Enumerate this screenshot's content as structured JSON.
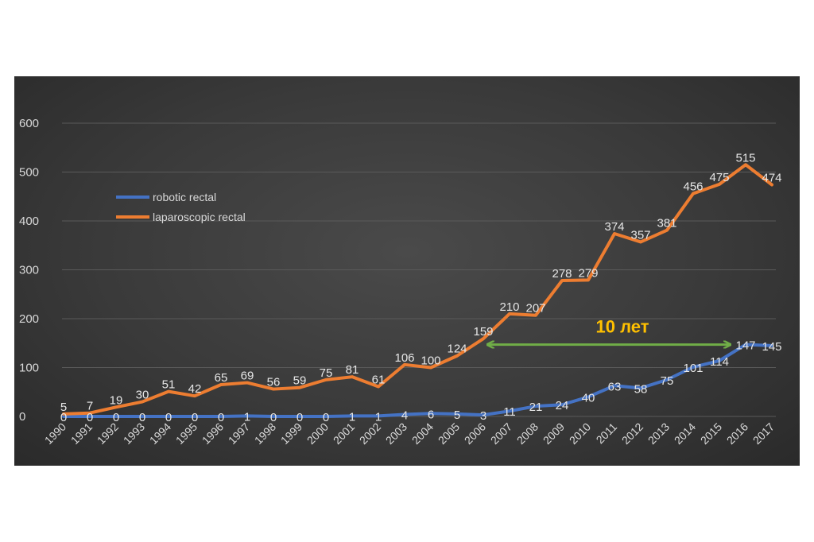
{
  "chart_data": {
    "type": "line",
    "title": "",
    "xlabel": "",
    "ylabel": "",
    "ylim": [
      0,
      600
    ],
    "yticks": [
      0,
      100,
      200,
      300,
      400,
      500,
      600
    ],
    "grid": true,
    "legend_position": "left",
    "x": [
      "1990",
      "1991",
      "1992",
      "1993",
      "1994",
      "1995",
      "1996",
      "1997",
      "1998",
      "1999",
      "2000",
      "2001",
      "2002",
      "2003",
      "2004",
      "2005",
      "2006",
      "2007",
      "2008",
      "2009",
      "2010",
      "2011",
      "2012",
      "2013",
      "2014",
      "2015",
      "2016",
      "2017"
    ],
    "series": [
      {
        "name": "robotic rectal",
        "color": "#4472c4",
        "values": [
          0,
          0,
          0,
          0,
          0,
          0,
          0,
          1,
          0,
          0,
          0,
          1,
          1,
          4,
          6,
          5,
          3,
          11,
          21,
          24,
          40,
          63,
          58,
          75,
          101,
          114,
          147,
          145
        ]
      },
      {
        "name": "laparoscopic rectal",
        "color": "#ed7d31",
        "values": [
          5,
          7,
          19,
          30,
          51,
          42,
          65,
          69,
          56,
          59,
          75,
          81,
          61,
          106,
          100,
          124,
          159,
          210,
          207,
          278,
          279,
          374,
          357,
          381,
          456,
          475,
          515,
          474
        ]
      }
    ],
    "annotation": {
      "text": "10 лет",
      "color": "#ffc000",
      "arrow_color": "#70ad47",
      "from_x": "2006",
      "to_x": "2016"
    },
    "colors": {
      "grid": "#5a5a5a",
      "text": "#d9d9d9"
    }
  }
}
